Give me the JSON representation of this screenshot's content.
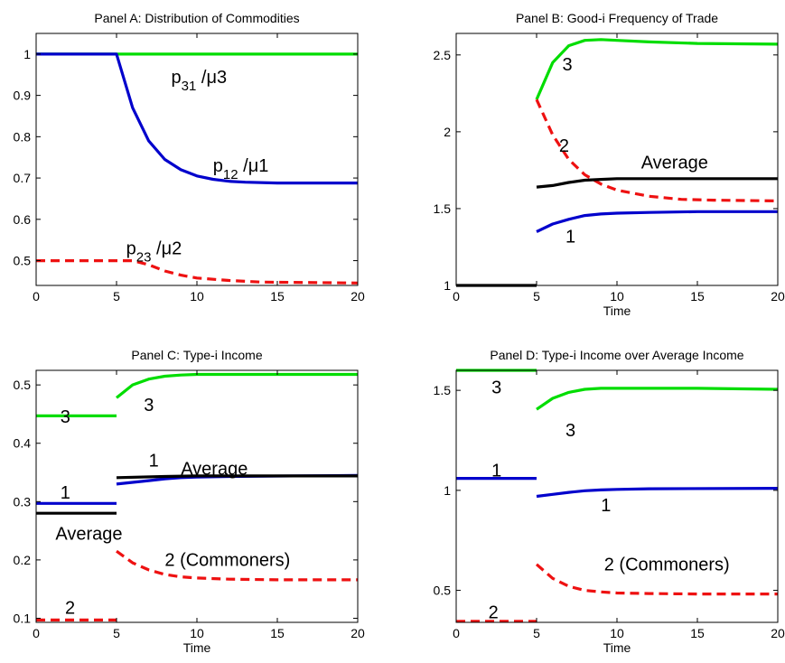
{
  "chart_data": [
    {
      "type": "line",
      "title": "Panel A: Distribution of Commodities",
      "xlabel": "",
      "ylabel": "",
      "xlim": [
        0,
        20
      ],
      "ylim": [
        0.44,
        1.05
      ],
      "xticks": [
        0,
        5,
        10,
        15,
        20
      ],
      "yticks": [
        0.5,
        0.6,
        0.7,
        0.8,
        0.9,
        1
      ],
      "ytick_labels": [
        "0.5",
        "0.6",
        "0.7",
        "0.8",
        "0.9",
        "1"
      ],
      "grid": false,
      "series": [
        {
          "color": "#00dd00",
          "style": "solid",
          "points": [
            [
              0,
              1
            ],
            [
              20,
              1
            ]
          ]
        },
        {
          "color": "#0000cc",
          "style": "solid",
          "points": [
            [
              0,
              1
            ],
            [
              5,
              1
            ],
            [
              6,
              0.87
            ],
            [
              7,
              0.79
            ],
            [
              8,
              0.745
            ],
            [
              9,
              0.72
            ],
            [
              10,
              0.705
            ],
            [
              11,
              0.697
            ],
            [
              12,
              0.692
            ],
            [
              13,
              0.69
            ],
            [
              15,
              0.688
            ],
            [
              20,
              0.688
            ]
          ]
        },
        {
          "color": "#ee1111",
          "style": "dashed",
          "points": [
            [
              0,
              0.5
            ],
            [
              6,
              0.5
            ],
            [
              7,
              0.49
            ],
            [
              8,
              0.475
            ],
            [
              9,
              0.465
            ],
            [
              10,
              0.458
            ],
            [
              12,
              0.452
            ],
            [
              14,
              0.448
            ],
            [
              20,
              0.446
            ]
          ]
        }
      ],
      "annotations": [
        {
          "main": "p",
          "sub": "31",
          "rest": " /μ3",
          "x": 8.4,
          "y": 0.93
        },
        {
          "main": "p",
          "sub": "12",
          "rest": " /μ1",
          "x": 11,
          "y": 0.715
        },
        {
          "main": "p",
          "sub": "23",
          "rest": " /μ2",
          "x": 5.6,
          "y": 0.515
        }
      ]
    },
    {
      "type": "line",
      "title": "Panel B: Good-i Frequency of Trade",
      "xlabel": "Time",
      "ylabel": "",
      "xlim": [
        0,
        20
      ],
      "ylim": [
        1,
        2.64
      ],
      "xticks": [
        0,
        5,
        10,
        15,
        20
      ],
      "yticks": [
        1,
        1.5,
        2,
        2.5
      ],
      "ytick_labels": [
        "1",
        "1.5",
        "2",
        "2.5"
      ],
      "grid": false,
      "series": [
        {
          "color": "#000000",
          "style": "solid",
          "points": [
            [
              0,
              1
            ],
            [
              5,
              1
            ]
          ]
        },
        {
          "color": "#00dd00",
          "style": "solid",
          "points": [
            [
              5,
              2.21
            ],
            [
              6,
              2.45
            ],
            [
              7,
              2.56
            ],
            [
              8,
              2.595
            ],
            [
              9,
              2.6
            ],
            [
              10,
              2.595
            ],
            [
              12,
              2.585
            ],
            [
              15,
              2.575
            ],
            [
              20,
              2.57
            ]
          ]
        },
        {
          "color": "#ee1111",
          "style": "dashed",
          "points": [
            [
              5,
              2.21
            ],
            [
              6,
              1.98
            ],
            [
              7,
              1.82
            ],
            [
              8,
              1.72
            ],
            [
              9,
              1.66
            ],
            [
              10,
              1.62
            ],
            [
              11,
              1.6
            ],
            [
              12,
              1.58
            ],
            [
              14,
              1.56
            ],
            [
              16,
              1.555
            ],
            [
              20,
              1.55
            ]
          ]
        },
        {
          "color": "#000000",
          "style": "solid",
          "points": [
            [
              5,
              1.64
            ],
            [
              6,
              1.65
            ],
            [
              7,
              1.67
            ],
            [
              8,
              1.685
            ],
            [
              9,
              1.69
            ],
            [
              10,
              1.695
            ],
            [
              12,
              1.695
            ],
            [
              20,
              1.695
            ]
          ]
        },
        {
          "color": "#0000cc",
          "style": "solid",
          "points": [
            [
              5,
              1.35
            ],
            [
              6,
              1.4
            ],
            [
              7,
              1.43
            ],
            [
              8,
              1.455
            ],
            [
              9,
              1.465
            ],
            [
              10,
              1.47
            ],
            [
              12,
              1.475
            ],
            [
              15,
              1.48
            ],
            [
              20,
              1.48
            ]
          ]
        }
      ],
      "annotations": [
        {
          "main": "3",
          "x": 6.6,
          "y": 2.4
        },
        {
          "main": "2",
          "x": 6.4,
          "y": 1.87
        },
        {
          "main": "Average",
          "x": 11.5,
          "y": 1.76
        },
        {
          "main": "1",
          "x": 6.8,
          "y": 1.28
        }
      ]
    },
    {
      "type": "line",
      "title": "Panel C: Type-i Income",
      "xlabel": "Time",
      "ylabel": "",
      "xlim": [
        0,
        20
      ],
      "ylim": [
        0.093,
        0.525
      ],
      "xticks": [
        0,
        5,
        10,
        15,
        20
      ],
      "yticks": [
        0.1,
        0.2,
        0.3,
        0.4,
        0.5
      ],
      "ytick_labels": [
        "0.1",
        "0.2",
        "0.3",
        "0.4",
        "0.5"
      ],
      "grid": false,
      "series": [
        {
          "color": "#00dd00",
          "style": "solid",
          "points": [
            [
              0,
              0.447
            ],
            [
              5,
              0.447
            ]
          ]
        },
        {
          "color": "#0000cc",
          "style": "solid",
          "points": [
            [
              0,
              0.297
            ],
            [
              5,
              0.297
            ]
          ]
        },
        {
          "color": "#000000",
          "style": "solid",
          "points": [
            [
              0,
              0.28
            ],
            [
              5,
              0.28
            ]
          ]
        },
        {
          "color": "#ee1111",
          "style": "dashed",
          "points": [
            [
              0,
              0.097
            ],
            [
              5,
              0.097
            ]
          ]
        },
        {
          "color": "#00dd00",
          "style": "solid",
          "points": [
            [
              5,
              0.478
            ],
            [
              6,
              0.5
            ],
            [
              7,
              0.51
            ],
            [
              8,
              0.515
            ],
            [
              9,
              0.517
            ],
            [
              10,
              0.518
            ],
            [
              20,
              0.518
            ]
          ]
        },
        {
          "color": "#0000cc",
          "style": "solid",
          "points": [
            [
              5,
              0.33
            ],
            [
              6,
              0.333
            ],
            [
              7,
              0.336
            ],
            [
              8,
              0.339
            ],
            [
              9,
              0.341
            ],
            [
              10,
              0.342
            ],
            [
              12,
              0.343
            ],
            [
              20,
              0.345
            ]
          ]
        },
        {
          "color": "#000000",
          "style": "solid",
          "points": [
            [
              5,
              0.341
            ],
            [
              8,
              0.343
            ],
            [
              10,
              0.344
            ],
            [
              20,
              0.344
            ]
          ]
        },
        {
          "color": "#ee1111",
          "style": "dashed",
          "points": [
            [
              5,
              0.215
            ],
            [
              6,
              0.195
            ],
            [
              7,
              0.183
            ],
            [
              8,
              0.175
            ],
            [
              9,
              0.171
            ],
            [
              10,
              0.169
            ],
            [
              12,
              0.167
            ],
            [
              15,
              0.166
            ],
            [
              20,
              0.166
            ]
          ]
        }
      ],
      "annotations": [
        {
          "main": "3",
          "x": 1.5,
          "y": 0.435
        },
        {
          "main": "3",
          "x": 6.7,
          "y": 0.455
        },
        {
          "main": "1",
          "x": 1.5,
          "y": 0.305
        },
        {
          "main": "1",
          "x": 7.0,
          "y": 0.36
        },
        {
          "main": "Average",
          "x": 9.0,
          "y": 0.346
        },
        {
          "main": "Average",
          "x": 1.2,
          "y": 0.235
        },
        {
          "main": "2 (Commoners)",
          "x": 8.0,
          "y": 0.19
        },
        {
          "main": "2",
          "x": 1.8,
          "y": 0.108
        }
      ]
    },
    {
      "type": "line",
      "title": "Panel D: Type-i Income over Average Income",
      "xlabel": "Time",
      "ylabel": "",
      "xlim": [
        0,
        20
      ],
      "ylim": [
        0.34,
        1.6
      ],
      "xticks": [
        0,
        5,
        10,
        15,
        20
      ],
      "yticks": [
        0.5,
        1,
        1.5
      ],
      "ytick_labels": [
        "0.5",
        "1",
        "1.5"
      ],
      "grid": false,
      "series": [
        {
          "color": "#00dd00",
          "style": "solid",
          "points": [
            [
              0,
              1.6
            ],
            [
              5,
              1.6
            ]
          ]
        },
        {
          "color": "#0000cc",
          "style": "solid",
          "points": [
            [
              0,
              1.06
            ],
            [
              5,
              1.06
            ]
          ]
        },
        {
          "color": "#ee1111",
          "style": "dashed",
          "points": [
            [
              0,
              0.345
            ],
            [
              5,
              0.345
            ]
          ]
        },
        {
          "color": "#00dd00",
          "style": "solid",
          "points": [
            [
              5,
              1.405
            ],
            [
              6,
              1.46
            ],
            [
              7,
              1.49
            ],
            [
              8,
              1.505
            ],
            [
              9,
              1.51
            ],
            [
              10,
              1.51
            ],
            [
              15,
              1.51
            ],
            [
              20,
              1.505
            ]
          ]
        },
        {
          "color": "#0000cc",
          "style": "solid",
          "points": [
            [
              5,
              0.97
            ],
            [
              6,
              0.98
            ],
            [
              7,
              0.99
            ],
            [
              8,
              0.998
            ],
            [
              9,
              1.002
            ],
            [
              10,
              1.005
            ],
            [
              12,
              1.008
            ],
            [
              20,
              1.01
            ]
          ]
        },
        {
          "color": "#ee1111",
          "style": "dashed",
          "points": [
            [
              5,
              0.63
            ],
            [
              6,
              0.56
            ],
            [
              7,
              0.52
            ],
            [
              8,
              0.5
            ],
            [
              9,
              0.492
            ],
            [
              10,
              0.487
            ],
            [
              12,
              0.484
            ],
            [
              15,
              0.482
            ],
            [
              20,
              0.482
            ]
          ]
        }
      ],
      "annotations": [
        {
          "main": "3",
          "x": 2.2,
          "y": 1.485
        },
        {
          "main": "3",
          "x": 6.8,
          "y": 1.27
        },
        {
          "main": "1",
          "x": 2.2,
          "y": 1.07
        },
        {
          "main": "1",
          "x": 9.0,
          "y": 0.895
        },
        {
          "main": "2 (Commoners)",
          "x": 9.2,
          "y": 0.6
        },
        {
          "main": "2",
          "x": 2.0,
          "y": 0.36
        }
      ]
    }
  ]
}
